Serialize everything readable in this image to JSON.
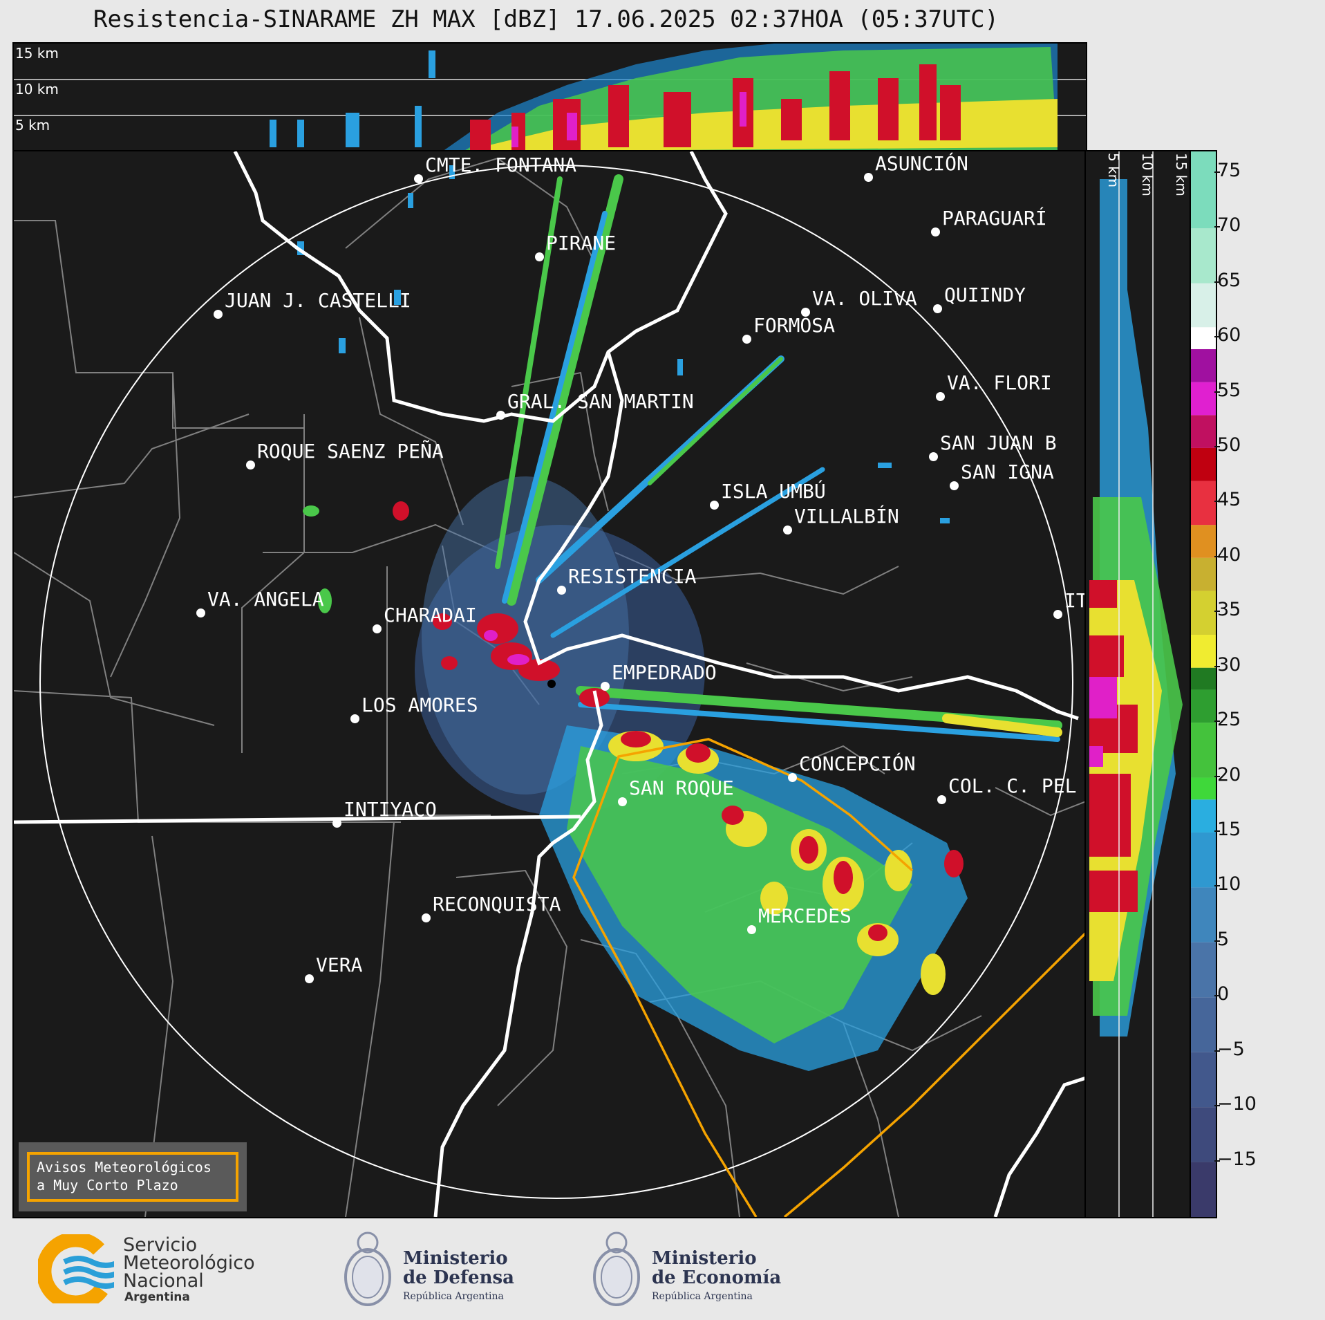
{
  "title": "Resistencia-SINARAME ZH MAX [dBZ] 17.06.2025 02:37HOA (05:37UTC)",
  "top_panel": {
    "labels": [
      "15 km",
      "10 km",
      "5 km"
    ]
  },
  "side_panel": {
    "labels": [
      "5 km",
      "10 km",
      "15 km"
    ]
  },
  "cities": [
    {
      "name": "CMTE. FONTANA"
    },
    {
      "name": "ASUNCIÓN"
    },
    {
      "name": "PARAGUARÍ"
    },
    {
      "name": "PIRANE"
    },
    {
      "name": "JUAN J. CASTELLI"
    },
    {
      "name": "VA. OLIVA"
    },
    {
      "name": "QUIINDY"
    },
    {
      "name": "FORMOSA"
    },
    {
      "name": "VA. FLORI"
    },
    {
      "name": "GRAL. SAN MARTIN"
    },
    {
      "name": "SAN JUAN B"
    },
    {
      "name": "ROQUE SAENZ PEÑA"
    },
    {
      "name": "SAN IGNA"
    },
    {
      "name": "ISLA UMBÚ"
    },
    {
      "name": "VILLALBÍN"
    },
    {
      "name": "RESISTENCIA"
    },
    {
      "name": "IT"
    },
    {
      "name": "VA. ANGELA"
    },
    {
      "name": "CHARADAI"
    },
    {
      "name": "EMPEDRADO"
    },
    {
      "name": "LOS AMORES"
    },
    {
      "name": "CONCEPCIÓN"
    },
    {
      "name": "SAN ROQUE"
    },
    {
      "name": "COL. C. PEL"
    },
    {
      "name": "INTIYACO"
    },
    {
      "name": "RECONQUISTA"
    },
    {
      "name": "MERCEDES"
    },
    {
      "name": "VERA"
    }
  ],
  "colorbar": {
    "ticks": [
      "75",
      "70",
      "65",
      "60",
      "55",
      "50",
      "45",
      "40",
      "35",
      "30",
      "25",
      "20",
      "15",
      "10",
      "5",
      "0",
      "−5",
      "−10",
      "−15"
    ],
    "min": -20,
    "max": 77
  },
  "avisos": {
    "line1": "Avisos Meteorológicos",
    "line2": "a Muy Corto Plazo"
  },
  "logos": {
    "smn": {
      "line1": "Servicio",
      "line2": "Meteorológico",
      "line3": "Nacional",
      "line4": "Argentina"
    },
    "defensa": {
      "line1": "Ministerio",
      "line2": "de Defensa",
      "line3": "República Argentina"
    },
    "economia": {
      "line1": "Ministerio",
      "line2": "de Economía",
      "line3": "República Argentina"
    }
  },
  "colors": {
    "background": "#1a1a1a",
    "warning": "#f5a300",
    "border": "#ffffff"
  }
}
